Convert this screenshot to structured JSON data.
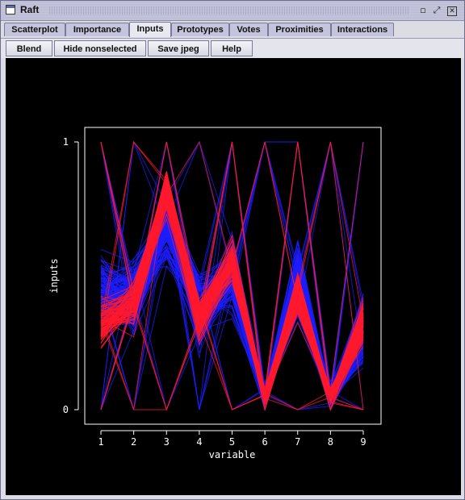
{
  "window": {
    "title": "Raft"
  },
  "tabs": [
    {
      "label": "Scatterplot"
    },
    {
      "label": "Importance"
    },
    {
      "label": "Inputs"
    },
    {
      "label": "Prototypes"
    },
    {
      "label": "Votes"
    },
    {
      "label": "Proximities"
    },
    {
      "label": "Interactions"
    }
  ],
  "active_tab": "Inputs",
  "toolbar": {
    "blend_label": "Blend",
    "hide_label": "Hide nonselected",
    "save_label": "Save jpeg",
    "help_label": "Help"
  },
  "icons": {
    "app": "window-icon",
    "minimize": "minimize-icon",
    "maximize": "maximize-icon",
    "close": "close-icon"
  },
  "colors": {
    "background": "#000000",
    "axis": "#ffffff",
    "series_a": "#1e1eff",
    "series_b": "#ff1a2e"
  },
  "chart_data": {
    "type": "parallel-coordinates",
    "title": "",
    "xlabel": "variable",
    "ylabel": "inputs",
    "x_ticks": [
      1,
      2,
      3,
      4,
      5,
      6,
      7,
      8,
      9
    ],
    "y_ticks": [
      0,
      1
    ],
    "ylim": [
      0,
      1
    ],
    "series": [
      {
        "color": "#1e1eff",
        "profile": [
          0.45,
          0.42,
          0.7,
          0.38,
          0.5,
          0.05,
          0.48,
          0.05,
          0.3
        ]
      },
      {
        "color": "#ff1a2e",
        "profile": [
          0.33,
          0.4,
          0.82,
          0.33,
          0.55,
          0.05,
          0.43,
          0.05,
          0.33
        ]
      }
    ]
  }
}
